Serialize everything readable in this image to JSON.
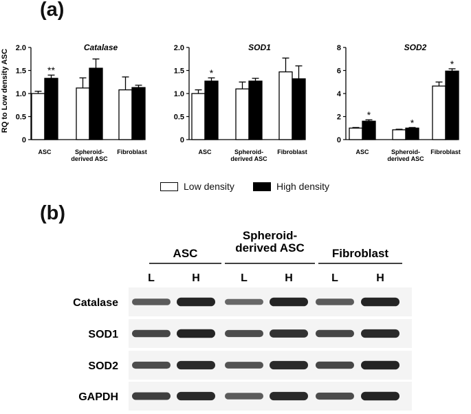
{
  "panel_a_label": "(a)",
  "panel_b_label": "(b)",
  "y_axis_label": "RQ to Low density ASC",
  "legend": [
    {
      "name": "Low density",
      "fill": "#ffffff"
    },
    {
      "name": "High density",
      "fill": "#000000"
    }
  ],
  "colors": {
    "low": "#ffffff",
    "high": "#000000",
    "axis": "#000000"
  },
  "chart_data": [
    {
      "type": "bar",
      "title": "Catalase",
      "ylabel": "RQ to Low density ASC",
      "ylim": [
        0,
        2.0
      ],
      "yticks": [
        "0",
        "0.5",
        "1.0",
        "1.5",
        "2.0"
      ],
      "categories": [
        "ASC",
        "Spheroid-\nderived ASC",
        "Fibroblast"
      ],
      "series": [
        {
          "name": "Low density",
          "values": [
            1.0,
            1.12,
            1.08
          ],
          "errors": [
            0.05,
            0.22,
            0.28
          ]
        },
        {
          "name": "High density",
          "values": [
            1.33,
            1.55,
            1.13
          ],
          "errors": [
            0.07,
            0.2,
            0.05
          ]
        }
      ],
      "annotations": [
        "**",
        "",
        ""
      ]
    },
    {
      "type": "bar",
      "title": "SOD1",
      "ylim": [
        0,
        2.0
      ],
      "yticks": [
        "0",
        "0.5",
        "1.0",
        "1.5",
        "2.0"
      ],
      "categories": [
        "ASC",
        "Spheroid-\nderived ASC",
        "Fibroblast"
      ],
      "series": [
        {
          "name": "Low density",
          "values": [
            1.0,
            1.1,
            1.47
          ],
          "errors": [
            0.08,
            0.15,
            0.3
          ]
        },
        {
          "name": "High density",
          "values": [
            1.27,
            1.27,
            1.32
          ],
          "errors": [
            0.07,
            0.06,
            0.28
          ]
        }
      ],
      "annotations": [
        "*",
        "",
        ""
      ]
    },
    {
      "type": "bar",
      "title": "SOD2",
      "ylim": [
        0,
        8
      ],
      "yticks": [
        "0",
        "2",
        "4",
        "6",
        "8"
      ],
      "categories": [
        "ASC",
        "Spheroid-\nderived ASC",
        "Fibroblast"
      ],
      "series": [
        {
          "name": "Low density",
          "values": [
            1.0,
            0.85,
            4.65
          ],
          "errors": [
            0.05,
            0.05,
            0.35
          ]
        },
        {
          "name": "High density",
          "values": [
            1.6,
            1.0,
            5.95
          ],
          "errors": [
            0.12,
            0.05,
            0.2
          ]
        }
      ],
      "annotations": [
        "*",
        "*",
        "*"
      ]
    }
  ],
  "blot": {
    "groups": [
      "ASC",
      "Spheroid-\nderived ASC",
      "Fibroblast"
    ],
    "lanes": [
      "L",
      "H",
      "L",
      "H",
      "L",
      "H"
    ],
    "rows": [
      {
        "name": "Catalase",
        "band_intensity": [
          0.55,
          0.95,
          0.45,
          0.95,
          0.55,
          0.95
        ]
      },
      {
        "name": "SOD1",
        "band_intensity": [
          0.7,
          0.95,
          0.65,
          0.85,
          0.7,
          0.9
        ]
      },
      {
        "name": "SOD2",
        "band_intensity": [
          0.65,
          0.9,
          0.6,
          0.9,
          0.7,
          0.95
        ]
      },
      {
        "name": "GAPDH",
        "band_intensity": [
          0.75,
          0.9,
          0.55,
          0.9,
          0.65,
          0.95
        ]
      }
    ]
  }
}
